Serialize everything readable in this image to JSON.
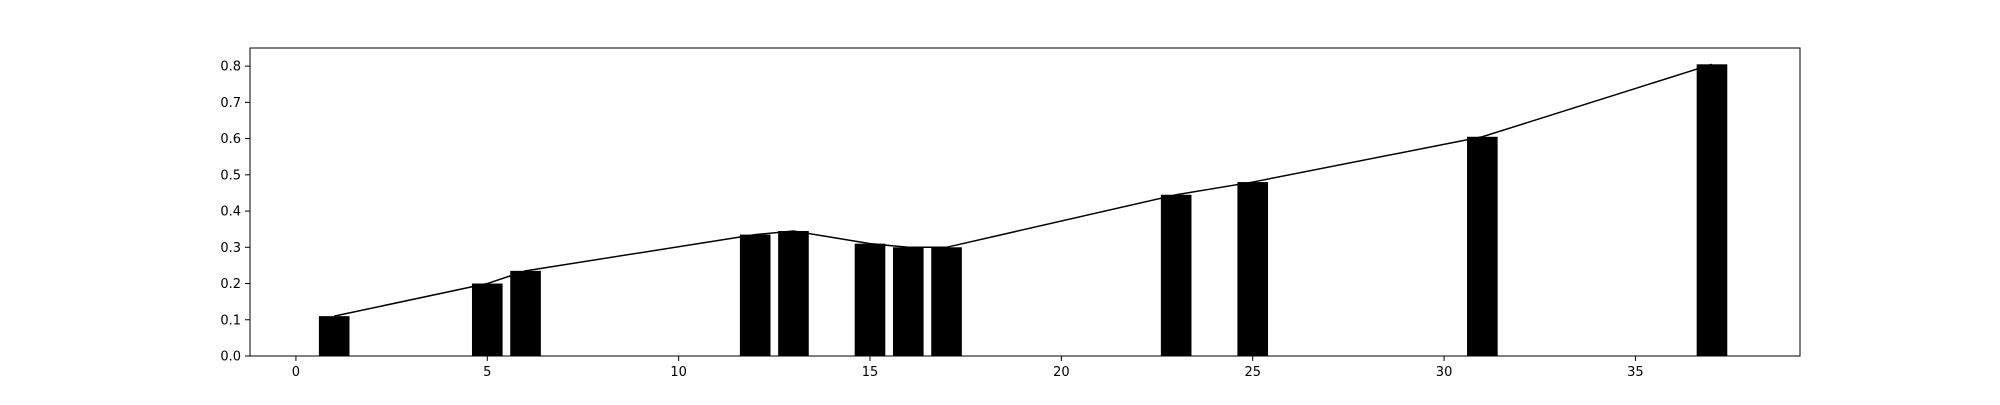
{
  "chart_data": {
    "type": "bar",
    "title": "",
    "xlabel": "",
    "ylabel": "",
    "xlim": [
      -1.2,
      39.3
    ],
    "ylim": [
      0,
      0.85
    ],
    "x_ticks": [
      0,
      5,
      10,
      15,
      20,
      25,
      30,
      35
    ],
    "x_tick_labels": [
      "0",
      "5",
      "10",
      "15",
      "20",
      "25",
      "30",
      "35"
    ],
    "y_ticks": [
      0.0,
      0.1,
      0.2,
      0.3,
      0.4,
      0.5,
      0.6,
      0.7,
      0.8
    ],
    "y_tick_labels": [
      "0.0",
      "0.1",
      "0.2",
      "0.3",
      "0.4",
      "0.5",
      "0.6",
      "0.7",
      "0.8"
    ],
    "grid": false,
    "bar_color": "#000000",
    "line_color": "#000000",
    "series": [
      {
        "type": "bar",
        "x": [
          1,
          5,
          6,
          12,
          13,
          15,
          16,
          17,
          23,
          25,
          31,
          37
        ],
        "values": [
          0.11,
          0.2,
          0.235,
          0.335,
          0.345,
          0.31,
          0.3,
          0.3,
          0.445,
          0.48,
          0.605,
          0.805
        ]
      },
      {
        "type": "line",
        "x": [
          1,
          5,
          6,
          12,
          13,
          15,
          16,
          17,
          23,
          25,
          31,
          37
        ],
        "values": [
          0.11,
          0.2,
          0.235,
          0.335,
          0.345,
          0.31,
          0.3,
          0.3,
          0.445,
          0.48,
          0.605,
          0.805
        ]
      }
    ]
  }
}
